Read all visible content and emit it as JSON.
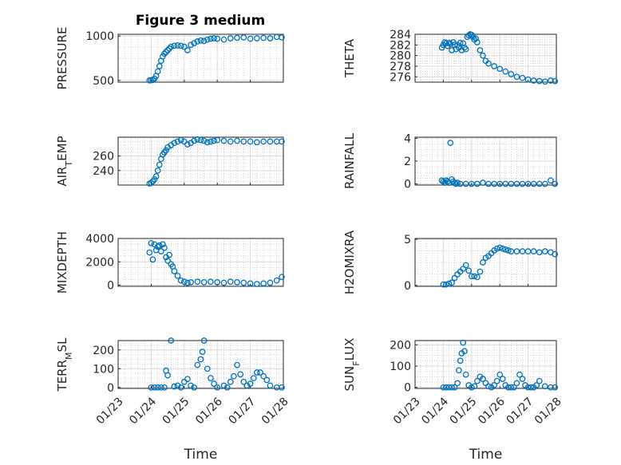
{
  "figure": {
    "title": "Figure 3 medium"
  },
  "colors": {
    "marker": "#0072BD",
    "axis": "#262626",
    "grid": "#dcdcdc",
    "minor_grid": "#c8c8c8"
  },
  "chart_data": [
    {
      "id": "pressure",
      "type": "scatter",
      "ylabel": "PRESSURE",
      "title": "Figure 3 medium",
      "ylim": [
        480,
        1020
      ],
      "yticks": [
        500,
        1000
      ],
      "ytick_labels": [
        "500",
        "1000"
      ],
      "xlim": [
        0,
        5
      ],
      "xticks": [
        0,
        1,
        2,
        3,
        4,
        5
      ],
      "xtick_labels": [],
      "grid": "on",
      "minor_grid": "on",
      "x": [
        0.95,
        1.0,
        1.05,
        1.1,
        1.15,
        1.2,
        1.25,
        1.3,
        1.35,
        1.4,
        1.45,
        1.5,
        1.55,
        1.6,
        1.7,
        1.8,
        1.9,
        2.0,
        2.1,
        2.2,
        2.3,
        2.4,
        2.5,
        2.6,
        2.7,
        2.8,
        2.9,
        3.0,
        3.2,
        3.4,
        3.6,
        3.8,
        4.0,
        4.2,
        4.4,
        4.6,
        4.8,
        4.95
      ],
      "y": [
        500,
        502,
        505,
        520,
        550,
        600,
        660,
        720,
        770,
        800,
        820,
        840,
        860,
        880,
        890,
        895,
        890,
        880,
        840,
        900,
        920,
        940,
        950,
        945,
        960,
        970,
        975,
        970,
        960,
        975,
        980,
        985,
        970,
        975,
        980,
        975,
        990,
        985
      ]
    },
    {
      "id": "theta",
      "type": "scatter",
      "ylabel": "THETA",
      "ylim": [
        275,
        284
      ],
      "yticks": [
        276,
        278,
        280,
        282,
        284
      ],
      "ytick_labels": [
        "276",
        "278",
        "280",
        "282",
        "284"
      ],
      "xlim": [
        0,
        5
      ],
      "xticks": [
        0,
        1,
        2,
        3,
        4,
        5
      ],
      "xtick_labels": [],
      "grid": "on",
      "minor_grid": "on",
      "x": [
        0.95,
        1.0,
        1.05,
        1.1,
        1.15,
        1.2,
        1.25,
        1.3,
        1.35,
        1.4,
        1.45,
        1.5,
        1.55,
        1.6,
        1.65,
        1.7,
        1.75,
        1.8,
        1.85,
        1.9,
        1.95,
        2.0,
        2.05,
        2.1,
        2.15,
        2.2,
        2.3,
        2.4,
        2.5,
        2.6,
        2.8,
        3.0,
        3.2,
        3.4,
        3.6,
        3.8,
        4.0,
        4.2,
        4.4,
        4.6,
        4.8,
        4.95
      ],
      "y": [
        281.5,
        282,
        282.5,
        282.3,
        281.8,
        282.4,
        282.2,
        281,
        282.5,
        282,
        281.2,
        282,
        281.5,
        282.4,
        281,
        282.3,
        281.5,
        281.2,
        283.5,
        283.8,
        284,
        283.9,
        283.5,
        283,
        283.2,
        282.5,
        281,
        280,
        279,
        278.5,
        278,
        277.5,
        277,
        276.5,
        276,
        275.8,
        275.5,
        275.3,
        275.2,
        275.1,
        275.3,
        275.2
      ]
    },
    {
      "id": "air_temp",
      "type": "scatter",
      "ylabel": "AIR_TEMP",
      "ylim": [
        220,
        286
      ],
      "yticks": [
        240,
        260
      ],
      "ytick_labels": [
        "240",
        "260"
      ],
      "xlim": [
        0,
        5
      ],
      "xticks": [
        0,
        1,
        2,
        3,
        4,
        5
      ],
      "xtick_labels": [],
      "grid": "on",
      "minor_grid": "on",
      "x": [
        0.95,
        1.0,
        1.05,
        1.1,
        1.15,
        1.2,
        1.25,
        1.3,
        1.35,
        1.4,
        1.45,
        1.5,
        1.6,
        1.7,
        1.8,
        1.9,
        2.0,
        2.1,
        2.2,
        2.3,
        2.4,
        2.5,
        2.6,
        2.7,
        2.8,
        2.9,
        3.0,
        3.2,
        3.4,
        3.6,
        3.8,
        4.0,
        4.2,
        4.4,
        4.6,
        4.8,
        4.95
      ],
      "y": [
        222,
        223,
        225,
        228,
        232,
        240,
        248,
        256,
        262,
        265,
        268,
        272,
        275,
        278,
        280,
        282,
        280,
        276,
        278,
        281,
        283,
        282,
        281,
        279,
        280,
        281,
        282,
        281,
        280,
        281,
        280,
        280,
        279,
        280,
        280,
        280,
        280
      ]
    },
    {
      "id": "rainfall",
      "type": "scatter",
      "ylabel": "RAINFALL",
      "ylim": [
        -0.1,
        4.1
      ],
      "yticks": [
        0,
        2,
        4
      ],
      "ytick_labels": [
        "0",
        "2",
        "4"
      ],
      "xlim": [
        0,
        5
      ],
      "xticks": [
        0,
        1,
        2,
        3,
        4,
        5
      ],
      "xtick_labels": [],
      "grid": "on",
      "minor_grid": "on",
      "x": [
        0.95,
        1.0,
        1.05,
        1.1,
        1.15,
        1.2,
        1.25,
        1.3,
        1.35,
        1.4,
        1.45,
        1.5,
        1.6,
        1.8,
        2.0,
        2.2,
        2.4,
        2.6,
        2.8,
        3.0,
        3.2,
        3.4,
        3.6,
        3.8,
        4.0,
        4.2,
        4.4,
        4.6,
        4.8,
        4.95
      ],
      "y": [
        0.3,
        0.2,
        0.1,
        0.3,
        0.2,
        0.1,
        3.6,
        0.4,
        0.2,
        0.1,
        0,
        0.1,
        0,
        0,
        0,
        0,
        0.1,
        0,
        0,
        0,
        0,
        0,
        0,
        0,
        0,
        0,
        0,
        0,
        0.3,
        0
      ]
    },
    {
      "id": "mixdepth",
      "type": "scatter",
      "ylabel": "MIXDEPTH",
      "ylim": [
        -100,
        4000
      ],
      "yticks": [
        0,
        2000,
        4000
      ],
      "ytick_labels": [
        "0",
        "2000",
        "4000"
      ],
      "xlim": [
        0,
        5
      ],
      "xticks": [
        0,
        1,
        2,
        3,
        4,
        5
      ],
      "xtick_labels": [],
      "grid": "on",
      "minor_grid": "on",
      "x": [
        0.95,
        1.0,
        1.05,
        1.1,
        1.15,
        1.2,
        1.25,
        1.3,
        1.35,
        1.4,
        1.45,
        1.5,
        1.55,
        1.6,
        1.65,
        1.7,
        1.8,
        1.9,
        2.0,
        2.1,
        2.2,
        2.4,
        2.6,
        2.8,
        3.0,
        3.2,
        3.4,
        3.6,
        3.8,
        4.0,
        4.2,
        4.4,
        4.6,
        4.8,
        4.95
      ],
      "y": [
        2800,
        3600,
        2200,
        3500,
        3000,
        3300,
        3400,
        2900,
        3500,
        3200,
        2400,
        2100,
        2600,
        1800,
        1600,
        1200,
        800,
        400,
        300,
        200,
        250,
        300,
        250,
        300,
        250,
        200,
        300,
        250,
        200,
        150,
        100,
        150,
        200,
        400,
        700
      ]
    },
    {
      "id": "h2omixra",
      "type": "scatter",
      "ylabel": "H2OMIXRA",
      "ylim": [
        -0.1,
        5.1
      ],
      "yticks": [
        0,
        5
      ],
      "ytick_labels": [
        "0",
        "5"
      ],
      "xlim": [
        0,
        5
      ],
      "xticks": [
        0,
        1,
        2,
        3,
        4,
        5
      ],
      "xtick_labels": [],
      "grid": "on",
      "minor_grid": "on",
      "x": [
        1.0,
        1.1,
        1.2,
        1.3,
        1.4,
        1.5,
        1.6,
        1.7,
        1.8,
        1.9,
        2.0,
        2.1,
        2.2,
        2.3,
        2.4,
        2.5,
        2.6,
        2.7,
        2.8,
        2.9,
        3.0,
        3.1,
        3.2,
        3.3,
        3.4,
        3.6,
        3.8,
        4.0,
        4.2,
        4.4,
        4.6,
        4.8,
        4.95
      ],
      "y": [
        0.1,
        0.1,
        0.2,
        0.3,
        0.8,
        1.2,
        1.5,
        1.8,
        2.2,
        1.6,
        1.0,
        1.0,
        0.9,
        1.5,
        2.5,
        3.0,
        3.2,
        3.5,
        3.8,
        4.0,
        4.1,
        4.0,
        3.9,
        3.8,
        3.7,
        3.7,
        3.7,
        3.7,
        3.7,
        3.6,
        3.7,
        3.6,
        3.4
      ]
    },
    {
      "id": "terr_msl",
      "type": "scatter",
      "ylabel": "TERR_MSL",
      "ylim": [
        -5,
        250
      ],
      "yticks": [
        0,
        100,
        200
      ],
      "ytick_labels": [
        "0",
        "100",
        "200"
      ],
      "xlim": [
        0,
        5
      ],
      "xticks": [
        0,
        1,
        2,
        3,
        4,
        5
      ],
      "xtick_labels": [
        "01/23",
        "01/24",
        "01/25",
        "01/26",
        "01/27",
        "01/28"
      ],
      "xlabel": "Time",
      "grid": "on",
      "minor_grid": "on",
      "x": [
        1.0,
        1.1,
        1.2,
        1.3,
        1.4,
        1.45,
        1.5,
        1.6,
        1.7,
        1.8,
        1.9,
        2.0,
        2.1,
        2.2,
        2.3,
        2.4,
        2.5,
        2.55,
        2.6,
        2.7,
        2.8,
        2.9,
        3.0,
        3.2,
        3.3,
        3.4,
        3.5,
        3.6,
        3.7,
        3.8,
        3.9,
        4.0,
        4.1,
        4.2,
        4.3,
        4.4,
        4.5,
        4.6,
        4.8,
        4.95
      ],
      "y": [
        0,
        0,
        0,
        0,
        0,
        90,
        65,
        250,
        5,
        10,
        0,
        30,
        45,
        10,
        0,
        120,
        150,
        190,
        250,
        100,
        50,
        20,
        0,
        10,
        0,
        30,
        60,
        120,
        70,
        30,
        10,
        20,
        50,
        80,
        80,
        60,
        40,
        10,
        0,
        0
      ]
    },
    {
      "id": "sun_flux",
      "type": "scatter",
      "ylabel": "SUN_FLUX",
      "ylim": [
        -5,
        220
      ],
      "yticks": [
        0,
        100,
        200
      ],
      "ytick_labels": [
        "0",
        "100",
        "200"
      ],
      "xlim": [
        0,
        5
      ],
      "xticks": [
        0,
        1,
        2,
        3,
        4,
        5
      ],
      "xtick_labels": [
        "01/23",
        "01/24",
        "01/25",
        "01/26",
        "01/27",
        "01/28"
      ],
      "xlabel": "Time",
      "grid": "on",
      "minor_grid": "on",
      "x": [
        1.0,
        1.1,
        1.2,
        1.3,
        1.4,
        1.5,
        1.55,
        1.6,
        1.65,
        1.7,
        1.75,
        1.8,
        1.9,
        2.0,
        2.1,
        2.2,
        2.3,
        2.4,
        2.5,
        2.6,
        2.7,
        2.8,
        2.9,
        3.0,
        3.1,
        3.2,
        3.3,
        3.4,
        3.5,
        3.6,
        3.7,
        3.8,
        3.9,
        4.0,
        4.1,
        4.2,
        4.3,
        4.4,
        4.6,
        4.8,
        4.95
      ],
      "y": [
        0,
        0,
        0,
        0,
        0,
        20,
        80,
        125,
        160,
        210,
        170,
        60,
        10,
        0,
        5,
        30,
        50,
        40,
        20,
        5,
        0,
        10,
        30,
        60,
        40,
        10,
        0,
        0,
        0,
        20,
        60,
        40,
        10,
        0,
        0,
        0,
        10,
        30,
        5,
        0,
        0
      ]
    }
  ]
}
